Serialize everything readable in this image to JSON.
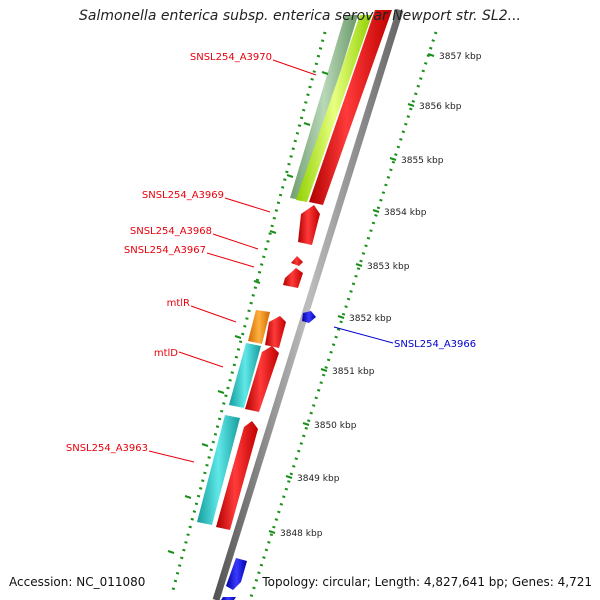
{
  "title": "Salmonella enterica subsp. enterica serovar Newport str. SL2...",
  "accession": "Accession: NC_011080",
  "summary": "Topology: circular; Length: 4,827,641 bp; Genes: 4,721",
  "scale_ticks": [
    {
      "label": "3857 kbp",
      "value": 3857
    },
    {
      "label": "3856 kbp",
      "value": 3856
    },
    {
      "label": "3855 kbp",
      "value": 3855
    },
    {
      "label": "3854 kbp",
      "value": 3854
    },
    {
      "label": "3853 kbp",
      "value": 3853
    },
    {
      "label": "3852 kbp",
      "value": 3852
    },
    {
      "label": "3851 kbp",
      "value": 3851
    },
    {
      "label": "3850 kbp",
      "value": 3850
    },
    {
      "label": "3849 kbp",
      "value": 3849
    },
    {
      "label": "3848 kbp",
      "value": 3848
    }
  ],
  "gene_labels": [
    {
      "text": "SNSL254_A3970",
      "color": "#e8000b"
    },
    {
      "text": "SNSL254_A3969",
      "color": "#e8000b"
    },
    {
      "text": "SNSL254_A3968",
      "color": "#e8000b"
    },
    {
      "text": "SNSL254_A3967",
      "color": "#e8000b"
    },
    {
      "text": "mtlR",
      "color": "#e8000b"
    },
    {
      "text": "mtlD",
      "color": "#e8000b"
    },
    {
      "text": "SNSL254_A3963",
      "color": "#e8000b"
    },
    {
      "text": "SNSL254_A3966",
      "color": "#0000cc"
    }
  ],
  "colors": {
    "forward_gene": "#ff0000",
    "reverse_gene": "#0000ff",
    "backbone": "#888888",
    "dotted_track": "#1a8f1a",
    "cog_green": "#8fbc8f",
    "cog_lime": "#adff2f",
    "cog_orange": "#ff8c00",
    "cog_cyan": "#20c0c0"
  }
}
